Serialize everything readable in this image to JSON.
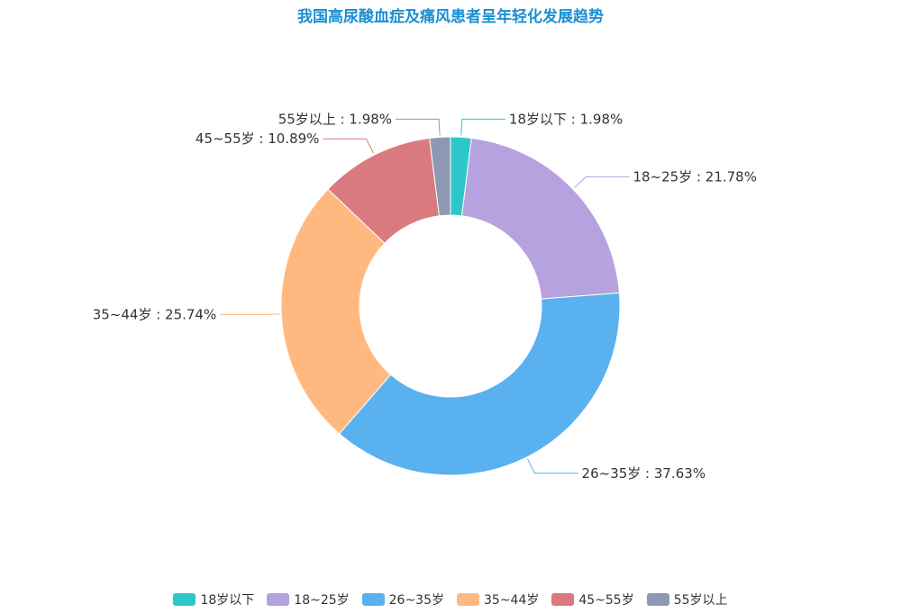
{
  "chart_data": {
    "type": "pie",
    "donut": true,
    "title": "我国高尿酸血症及痛风患者呈年轻化发展趋势",
    "categories": [
      "18岁以下",
      "18~25岁",
      "26~35岁",
      "35~44岁",
      "45~55岁",
      "55岁以上"
    ],
    "values": [
      1.98,
      21.78,
      37.63,
      25.74,
      10.89,
      1.98
    ],
    "unit": "%",
    "labels": [
      "18岁以下 : 1.98%",
      "18~25岁 : 21.78%",
      "26~35岁 : 37.63%",
      "35~44岁 : 25.74%",
      "45~55岁 : 10.89%",
      "55岁以上 : 1.98%"
    ],
    "colors": [
      "#2ec7c9",
      "#b6a2de",
      "#5ab1ef",
      "#ffb980",
      "#d87a80",
      "#8d98b3"
    ],
    "legend_position": "bottom"
  }
}
